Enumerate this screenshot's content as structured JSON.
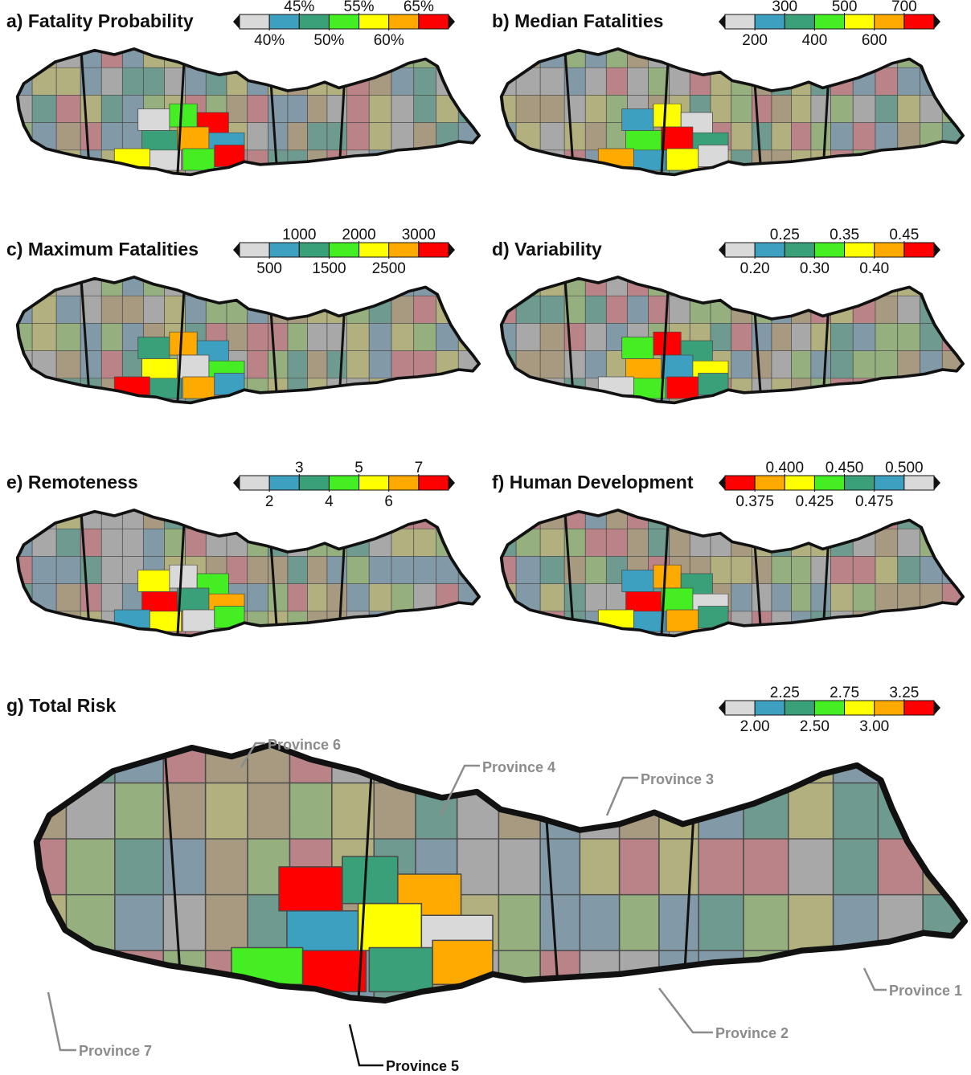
{
  "panels": [
    {
      "id": "a",
      "title": "a) Fatality Probability",
      "colorbar": {
        "top_labels": [
          "45%",
          "55%",
          "65%"
        ],
        "bottom_labels": [
          "40%",
          "50%",
          "60%"
        ],
        "colors": [
          "#d9d9d9",
          "#3ea0c0",
          "#3aa07a",
          "#44ee22",
          "#ffff00",
          "#ffaa00",
          "#ff0000"
        ]
      }
    },
    {
      "id": "b",
      "title": "b) Median Fatalities",
      "colorbar": {
        "top_labels": [
          "300",
          "500",
          "700"
        ],
        "bottom_labels": [
          "200",
          "400",
          "600"
        ],
        "colors": [
          "#d9d9d9",
          "#3ea0c0",
          "#3aa07a",
          "#44ee22",
          "#ffff00",
          "#ffaa00",
          "#ff0000"
        ]
      }
    },
    {
      "id": "c",
      "title": "c) Maximum Fatalities",
      "colorbar": {
        "top_labels": [
          "1000",
          "2000",
          "3000"
        ],
        "bottom_labels": [
          "500",
          "1500",
          "2500"
        ],
        "colors": [
          "#d9d9d9",
          "#3ea0c0",
          "#3aa07a",
          "#44ee22",
          "#ffff00",
          "#ffaa00",
          "#ff0000"
        ]
      }
    },
    {
      "id": "d",
      "title": "d) Variability",
      "colorbar": {
        "top_labels": [
          "0.25",
          "0.35",
          "0.45"
        ],
        "bottom_labels": [
          "0.20",
          "0.30",
          "0.40"
        ],
        "colors": [
          "#d9d9d9",
          "#3ea0c0",
          "#3aa07a",
          "#44ee22",
          "#ffff00",
          "#ffaa00",
          "#ff0000"
        ]
      }
    },
    {
      "id": "e",
      "title": "e) Remoteness",
      "colorbar": {
        "top_labels": [
          "3",
          "5",
          "7"
        ],
        "bottom_labels": [
          "2",
          "4",
          "6"
        ],
        "colors": [
          "#d9d9d9",
          "#3ea0c0",
          "#3aa07a",
          "#44ee22",
          "#ffff00",
          "#ffaa00",
          "#ff0000"
        ]
      }
    },
    {
      "id": "f",
      "title": "f) Human Development",
      "colorbar": {
        "top_labels": [
          "0.400",
          "0.450",
          "0.500"
        ],
        "bottom_labels": [
          "0.375",
          "0.425",
          "0.475"
        ],
        "colors": [
          "#ff0000",
          "#ffaa00",
          "#ffff00",
          "#44ee22",
          "#3aa07a",
          "#3ea0c0",
          "#d9d9d9"
        ]
      }
    },
    {
      "id": "g",
      "title": "g) Total Risk",
      "colorbar": {
        "top_labels": [
          "2.25",
          "2.75",
          "3.25"
        ],
        "bottom_labels": [
          "2.00",
          "2.50",
          "3.00"
        ],
        "colors": [
          "#d9d9d9",
          "#3ea0c0",
          "#3aa07a",
          "#44ee22",
          "#ffff00",
          "#ffaa00",
          "#ff0000"
        ]
      }
    }
  ],
  "province_labels": {
    "province_1": "Province 1",
    "province_2": "Province 2",
    "province_3": "Province 3",
    "province_4": "Province 4",
    "province_5": "Province 5",
    "province_6": "Province 6",
    "province_7": "Province 7"
  },
  "focus_province": "Province 5",
  "colors": {
    "muted_gray": "#a8a8a8",
    "muted_slate": "#8299a8",
    "muted_green": "#95b07e",
    "muted_olive": "#b3b07f",
    "muted_rose": "#b98387",
    "muted_tan": "#a89a80",
    "muted_teal": "#6f9a8f"
  }
}
